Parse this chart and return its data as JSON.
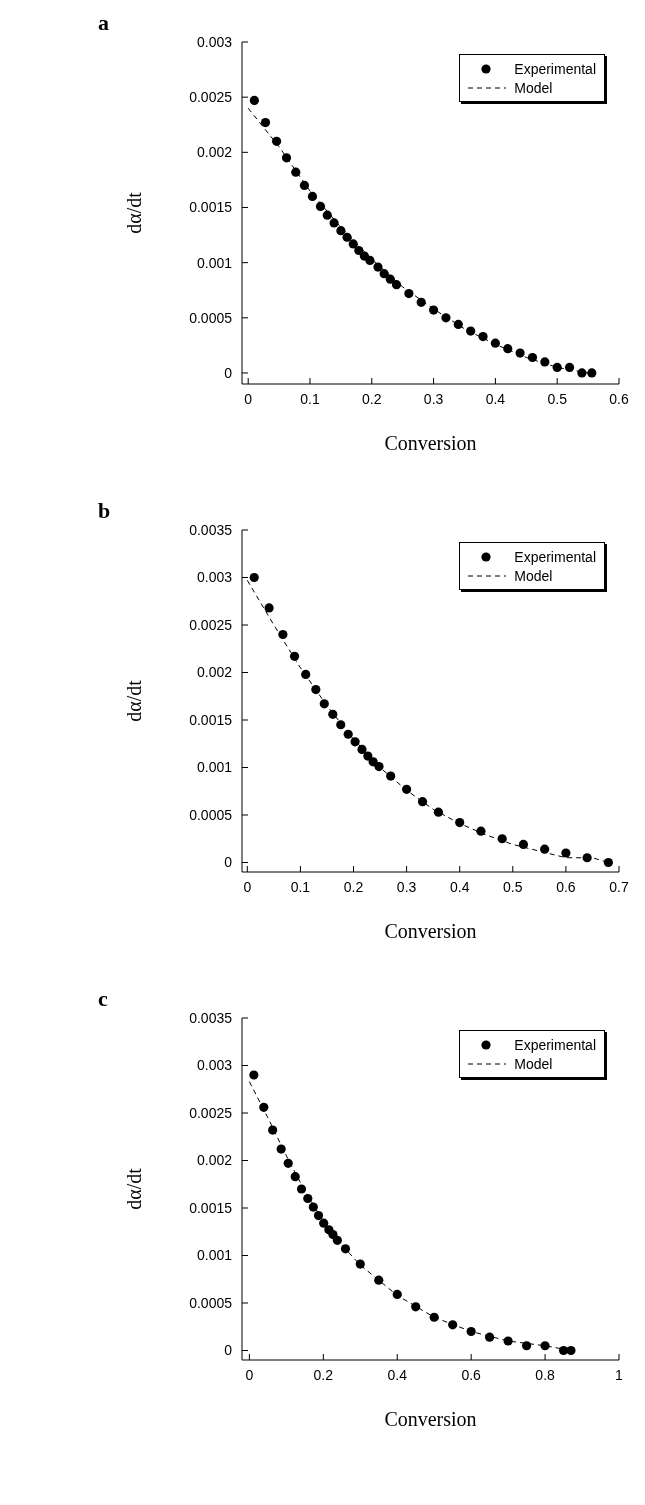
{
  "chart_data": [
    {
      "type": "scatter",
      "title": "a",
      "xlabel": "Conversion",
      "ylabel": "dα/dt",
      "xlim": [
        -0.01,
        0.6
      ],
      "ylim": [
        -0.0001,
        0.003
      ],
      "xticks": [
        0,
        0.1,
        0.2,
        0.3,
        0.4,
        0.5,
        0.6
      ],
      "yticks": [
        0,
        0.0005,
        0.001,
        0.0015,
        0.002,
        0.0025,
        0.003
      ],
      "legend": "top right",
      "grid": false,
      "series": [
        {
          "name": "Experimental",
          "type": "scatter",
          "marker": "circle",
          "color": "#000000",
          "x": [
            0.01,
            0.028,
            0.046,
            0.062,
            0.077,
            0.091,
            0.104,
            0.117,
            0.128,
            0.139,
            0.15,
            0.16,
            0.17,
            0.179,
            0.188,
            0.197,
            0.21,
            0.22,
            0.23,
            0.24,
            0.26,
            0.28,
            0.3,
            0.32,
            0.34,
            0.36,
            0.38,
            0.4,
            0.42,
            0.44,
            0.46,
            0.48,
            0.5,
            0.52,
            0.54,
            0.556
          ],
          "values": [
            0.00247,
            0.00227,
            0.0021,
            0.00195,
            0.00182,
            0.0017,
            0.0016,
            0.00151,
            0.00143,
            0.00136,
            0.00129,
            0.00123,
            0.00117,
            0.00111,
            0.00106,
            0.00102,
            0.00096,
            0.0009,
            0.00085,
            0.0008,
            0.00072,
            0.00064,
            0.00057,
            0.0005,
            0.00044,
            0.00038,
            0.00033,
            0.00027,
            0.00022,
            0.00018,
            0.00014,
            0.0001,
            5e-05,
            5e-05,
            0,
            0
          ]
        },
        {
          "name": "Model",
          "type": "line",
          "line_style": "dashed",
          "color": "#000000",
          "x": [
            0,
            0.05,
            0.1,
            0.15,
            0.2,
            0.25,
            0.3,
            0.35,
            0.4,
            0.45,
            0.5,
            0.55
          ],
          "values": [
            0.0024,
            0.00205,
            0.00165,
            0.00132,
            0.00103,
            0.00078,
            0.00058,
            0.0004,
            0.00026,
            0.00014,
            5e-05,
            0
          ]
        }
      ]
    },
    {
      "type": "scatter",
      "title": "b",
      "xlabel": "Conversion",
      "ylabel": "dα/dt",
      "xlim": [
        -0.01,
        0.7
      ],
      "ylim": [
        -0.0001,
        0.0035
      ],
      "xticks": [
        0,
        0.1,
        0.2,
        0.3,
        0.4,
        0.5,
        0.6,
        0.7
      ],
      "yticks": [
        0,
        0.0005,
        0.001,
        0.0015,
        0.002,
        0.0025,
        0.003,
        0.0035
      ],
      "legend": "top right",
      "grid": false,
      "series": [
        {
          "name": "Experimental",
          "type": "scatter",
          "marker": "circle",
          "color": "#000000",
          "x": [
            0.013,
            0.041,
            0.067,
            0.089,
            0.11,
            0.129,
            0.145,
            0.161,
            0.176,
            0.19,
            0.203,
            0.216,
            0.227,
            0.237,
            0.248,
            0.27,
            0.3,
            0.33,
            0.36,
            0.4,
            0.44,
            0.48,
            0.52,
            0.56,
            0.6,
            0.64,
            0.68
          ],
          "values": [
            0.003,
            0.00268,
            0.0024,
            0.00217,
            0.00198,
            0.00182,
            0.00167,
            0.00156,
            0.00145,
            0.00135,
            0.00127,
            0.00119,
            0.00112,
            0.00106,
            0.00101,
            0.00091,
            0.00077,
            0.00064,
            0.00053,
            0.00042,
            0.00033,
            0.00025,
            0.00019,
            0.00014,
            0.0001,
            5e-05,
            0
          ]
        },
        {
          "name": "Model",
          "type": "line",
          "line_style": "dashed",
          "color": "#000000",
          "x": [
            0,
            0.05,
            0.1,
            0.15,
            0.2,
            0.25,
            0.3,
            0.35,
            0.4,
            0.45,
            0.5,
            0.55,
            0.6,
            0.65,
            0.68
          ],
          "values": [
            0.00297,
            0.0025,
            0.00205,
            0.00165,
            0.0013,
            0.001,
            0.00076,
            0.00056,
            0.00041,
            0.00029,
            0.00019,
            0.00012,
            5e-05,
            5e-05,
            0
          ]
        }
      ]
    },
    {
      "type": "scatter",
      "title": "c",
      "xlabel": "Conversion",
      "ylabel": "dα/dt",
      "xlim": [
        -0.02,
        1
      ],
      "ylim": [
        -0.0001,
        0.0035
      ],
      "xticks": [
        0,
        0.2,
        0.4,
        0.6,
        0.8,
        1
      ],
      "yticks": [
        0,
        0.0005,
        0.001,
        0.0015,
        0.002,
        0.0025,
        0.003,
        0.0035
      ],
      "legend": "top right",
      "grid": false,
      "series": [
        {
          "name": "Experimental",
          "type": "scatter",
          "marker": "circle",
          "color": "#000000",
          "x": [
            0.012,
            0.039,
            0.063,
            0.086,
            0.105,
            0.124,
            0.141,
            0.158,
            0.173,
            0.187,
            0.201,
            0.215,
            0.226,
            0.238,
            0.26,
            0.3,
            0.35,
            0.4,
            0.45,
            0.5,
            0.55,
            0.6,
            0.65,
            0.7,
            0.75,
            0.8,
            0.85,
            0.87
          ],
          "values": [
            0.0029,
            0.00256,
            0.00232,
            0.00212,
            0.00197,
            0.00183,
            0.0017,
            0.0016,
            0.00151,
            0.00142,
            0.00134,
            0.00127,
            0.00122,
            0.00116,
            0.00107,
            0.00091,
            0.00074,
            0.00059,
            0.00046,
            0.00035,
            0.00027,
            0.0002,
            0.00014,
            0.0001,
            5e-05,
            5e-05,
            0,
            0
          ]
        },
        {
          "name": "Model",
          "type": "line",
          "line_style": "dashed",
          "color": "#000000",
          "x": [
            0,
            0.05,
            0.1,
            0.15,
            0.2,
            0.25,
            0.3,
            0.4,
            0.5,
            0.6,
            0.7,
            0.8,
            0.87
          ],
          "values": [
            0.00283,
            0.00245,
            0.00205,
            0.00168,
            0.00136,
            0.00111,
            0.0009,
            0.00058,
            0.00035,
            0.0002,
            0.0001,
            5e-05,
            0
          ]
        }
      ]
    }
  ]
}
